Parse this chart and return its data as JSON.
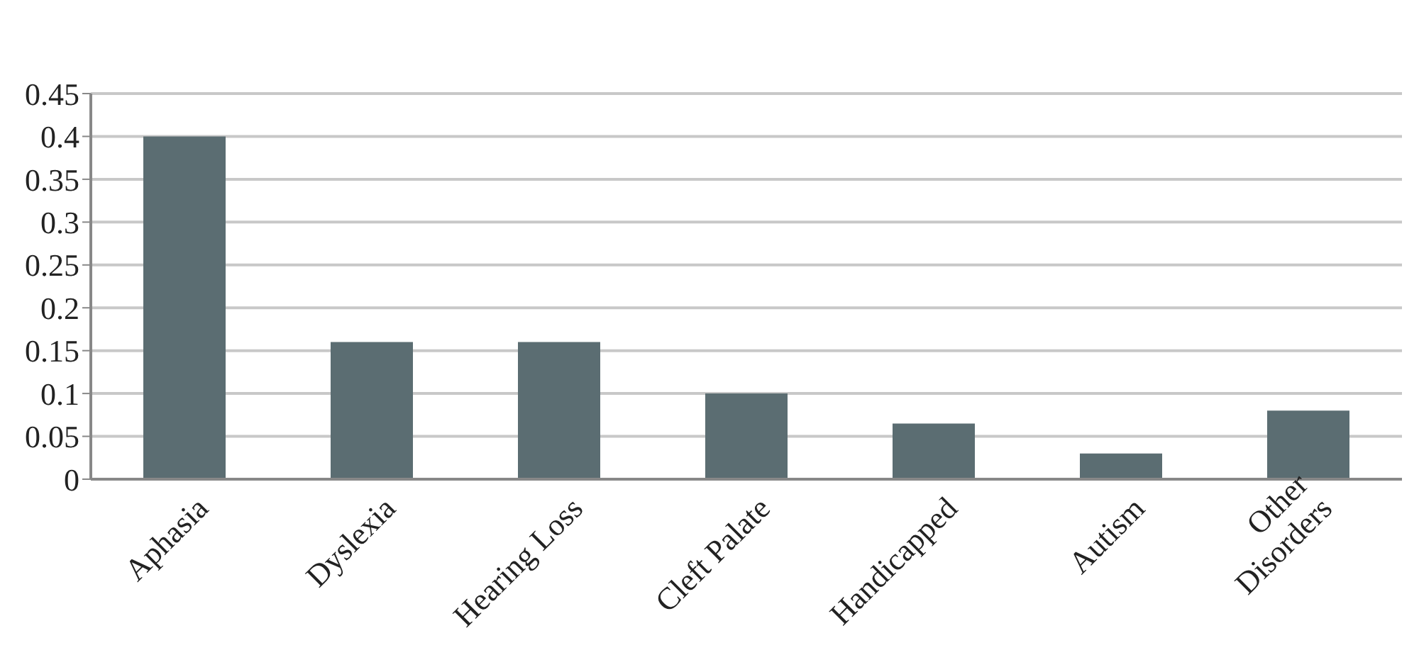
{
  "chart_data": {
    "type": "bar",
    "categories": [
      "Aphasia",
      "Dyslexia",
      "Hearing Loss",
      "Cleft Palate",
      "Handicapped",
      "Autism",
      "Other Disorders"
    ],
    "values": [
      0.4,
      0.16,
      0.16,
      0.1,
      0.065,
      0.03,
      0.08
    ],
    "color": "#5b6d72",
    "ylim": [
      0,
      0.45
    ],
    "yticks": [
      0,
      0.05,
      0.1,
      0.15,
      0.2,
      0.25,
      0.3,
      0.35,
      0.4,
      0.45
    ],
    "grid": "y"
  }
}
